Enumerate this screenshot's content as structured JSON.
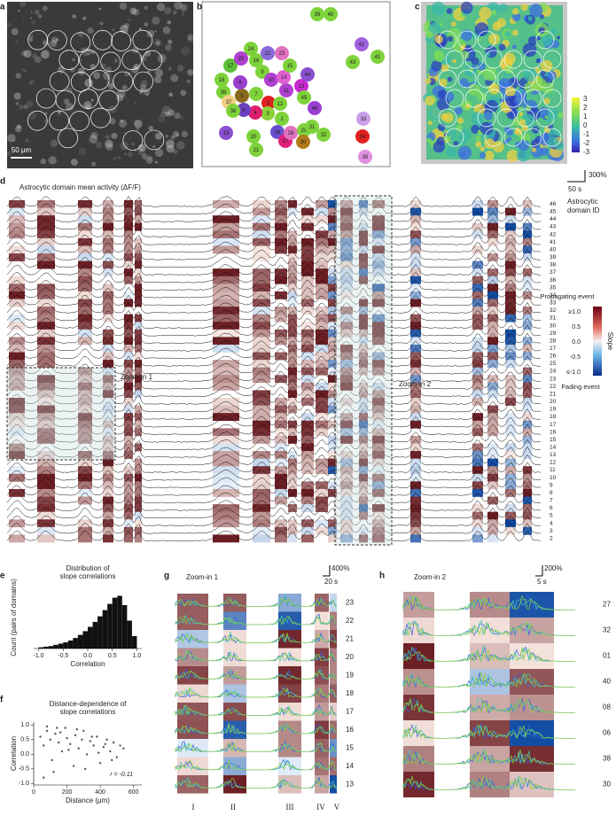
{
  "panel_labels": [
    "a",
    "b",
    "c",
    "d",
    "e",
    "f",
    "g",
    "h"
  ],
  "a": {
    "scale_bar": "50 μm"
  },
  "b": {
    "domains": [
      "1",
      "2",
      "3",
      "4",
      "5",
      "6",
      "7",
      "8",
      "9",
      "10",
      "11",
      "12",
      "13",
      "14",
      "15",
      "16",
      "17",
      "18",
      "19",
      "20",
      "21",
      "22",
      "23",
      "24",
      "25",
      "26",
      "27",
      "28",
      "29",
      "30",
      "31",
      "32",
      "33",
      "34",
      "35",
      "36",
      "37",
      "38",
      "39",
      "40",
      "41",
      "42",
      "43",
      "44",
      "45",
      "46"
    ]
  },
  "c": {
    "colorbar_ticks": [
      "3",
      "2",
      "1",
      "0",
      "-1",
      "-2",
      "-3"
    ]
  },
  "d": {
    "title": "Astrocytic domain mean activity (ΔF/F)",
    "scale_y": "300%",
    "scale_x": "50 s",
    "axis_title": [
      "Astrocytic",
      "domain ID"
    ],
    "domain_ids": [
      "46",
      "45",
      "44",
      "43",
      "42",
      "41",
      "40",
      "39",
      "38",
      "37",
      "36",
      "35",
      "34",
      "33",
      "32",
      "31",
      "30",
      "29",
      "28",
      "27",
      "26",
      "25",
      "24",
      "23",
      "22",
      "21",
      "20",
      "19",
      "18",
      "17",
      "16",
      "15",
      "14",
      "13",
      "12",
      "11",
      "10",
      "9",
      "8",
      "7",
      "6",
      "5",
      "4",
      "3",
      "2"
    ],
    "zoom_labels": [
      "Zoom-in 1",
      "Zoom-in 2"
    ],
    "colorbar": {
      "top_label": "Propagating event",
      "bottom_label": "Fading event",
      "title": "Slope",
      "ticks": [
        "≥1.0",
        "0.5",
        "0.0",
        "-0.5",
        "≤-1.0"
      ]
    }
  },
  "chart_data": [
    {
      "type": "histogram",
      "title": [
        "Distribution of",
        "slope correlations"
      ],
      "x_label": "Correlation",
      "y_label": "Count (pairs of domains)",
      "color": "#111111",
      "bins": [
        -1,
        -0.9,
        -0.8,
        -0.7,
        -0.6,
        -0.5,
        -0.4,
        -0.3,
        -0.2,
        -0.1,
        0,
        0.1,
        0.2,
        0.3,
        0.4,
        0.5,
        0.6,
        0.7,
        0.8,
        0.9,
        1
      ],
      "values": [
        2,
        3,
        4,
        6,
        8,
        10,
        13,
        17,
        22,
        28,
        35,
        43,
        52,
        62,
        72,
        82,
        85,
        70,
        45,
        20
      ],
      "xlim": [
        -1.1,
        1.1
      ],
      "ylim": [
        0,
        100
      ],
      "xticks": [
        {
          "value": -1,
          "label": "-1.0"
        },
        {
          "value": -0.5,
          "label": "-0.5"
        },
        {
          "value": 0,
          "label": "0.0"
        },
        {
          "value": 0.5,
          "label": "0.5"
        },
        {
          "value": 1,
          "label": "1.0"
        }
      ]
    },
    {
      "type": "scatter",
      "title": [
        "Distance-dependence of",
        "slope correlations"
      ],
      "x_label": "Distance (μm)",
      "y_label": "Correlation",
      "annotation": "r = -0.11",
      "color": "#555555",
      "x": [
        40,
        60,
        80,
        100,
        110,
        130,
        150,
        170,
        190,
        200,
        220,
        240,
        250,
        270,
        290,
        300,
        320,
        340,
        360,
        380,
        400,
        420,
        440,
        460,
        480,
        500,
        520,
        540,
        80,
        120,
        160,
        210,
        260,
        310,
        350,
        390,
        430,
        470,
        60,
        140
      ],
      "values": [
        0.6,
        0.3,
        0.8,
        0.5,
        -0.2,
        0.7,
        0.4,
        0.1,
        0.9,
        0.55,
        0.35,
        -0.4,
        0.65,
        0.2,
        0.5,
        0.8,
        0.0,
        0.45,
        0.3,
        0.6,
        -0.3,
        0.25,
        0.5,
        0.1,
        0.4,
        -0.1,
        0.3,
        0.2,
        0.95,
        -0.6,
        0.75,
        0.15,
        0.85,
        -0.5,
        0.6,
        0.05,
        0.35,
        -0.2,
        -0.8,
        0.9
      ],
      "xlim": [
        0,
        650
      ],
      "ylim": [
        -1.05,
        1.1
      ],
      "xticks": [
        0,
        200,
        400,
        600
      ],
      "yticks": [
        {
          "value": 1,
          "label": "1.0"
        },
        {
          "value": 0.5,
          "label": "0.5"
        },
        {
          "value": 0,
          "label": "0.0"
        },
        {
          "value": -0.5,
          "label": "-0.5"
        },
        {
          "value": -1,
          "label": "-1.0"
        }
      ]
    }
  ],
  "g": {
    "title": "Zoom-in 1",
    "scale_y": "400%",
    "scale_x": "20 s",
    "rows": [
      "23",
      "22",
      "21",
      "20",
      "19",
      "18",
      "17",
      "16",
      "15",
      "14",
      "13"
    ],
    "events": [
      "I",
      "II",
      "III",
      "IV",
      "V"
    ]
  },
  "h": {
    "title": "Zoom-in 2",
    "scale_y": "200%",
    "scale_x": "5 s",
    "rows": [
      "27",
      "32",
      "01",
      "40",
      "08",
      "06",
      "38",
      "30"
    ]
  }
}
